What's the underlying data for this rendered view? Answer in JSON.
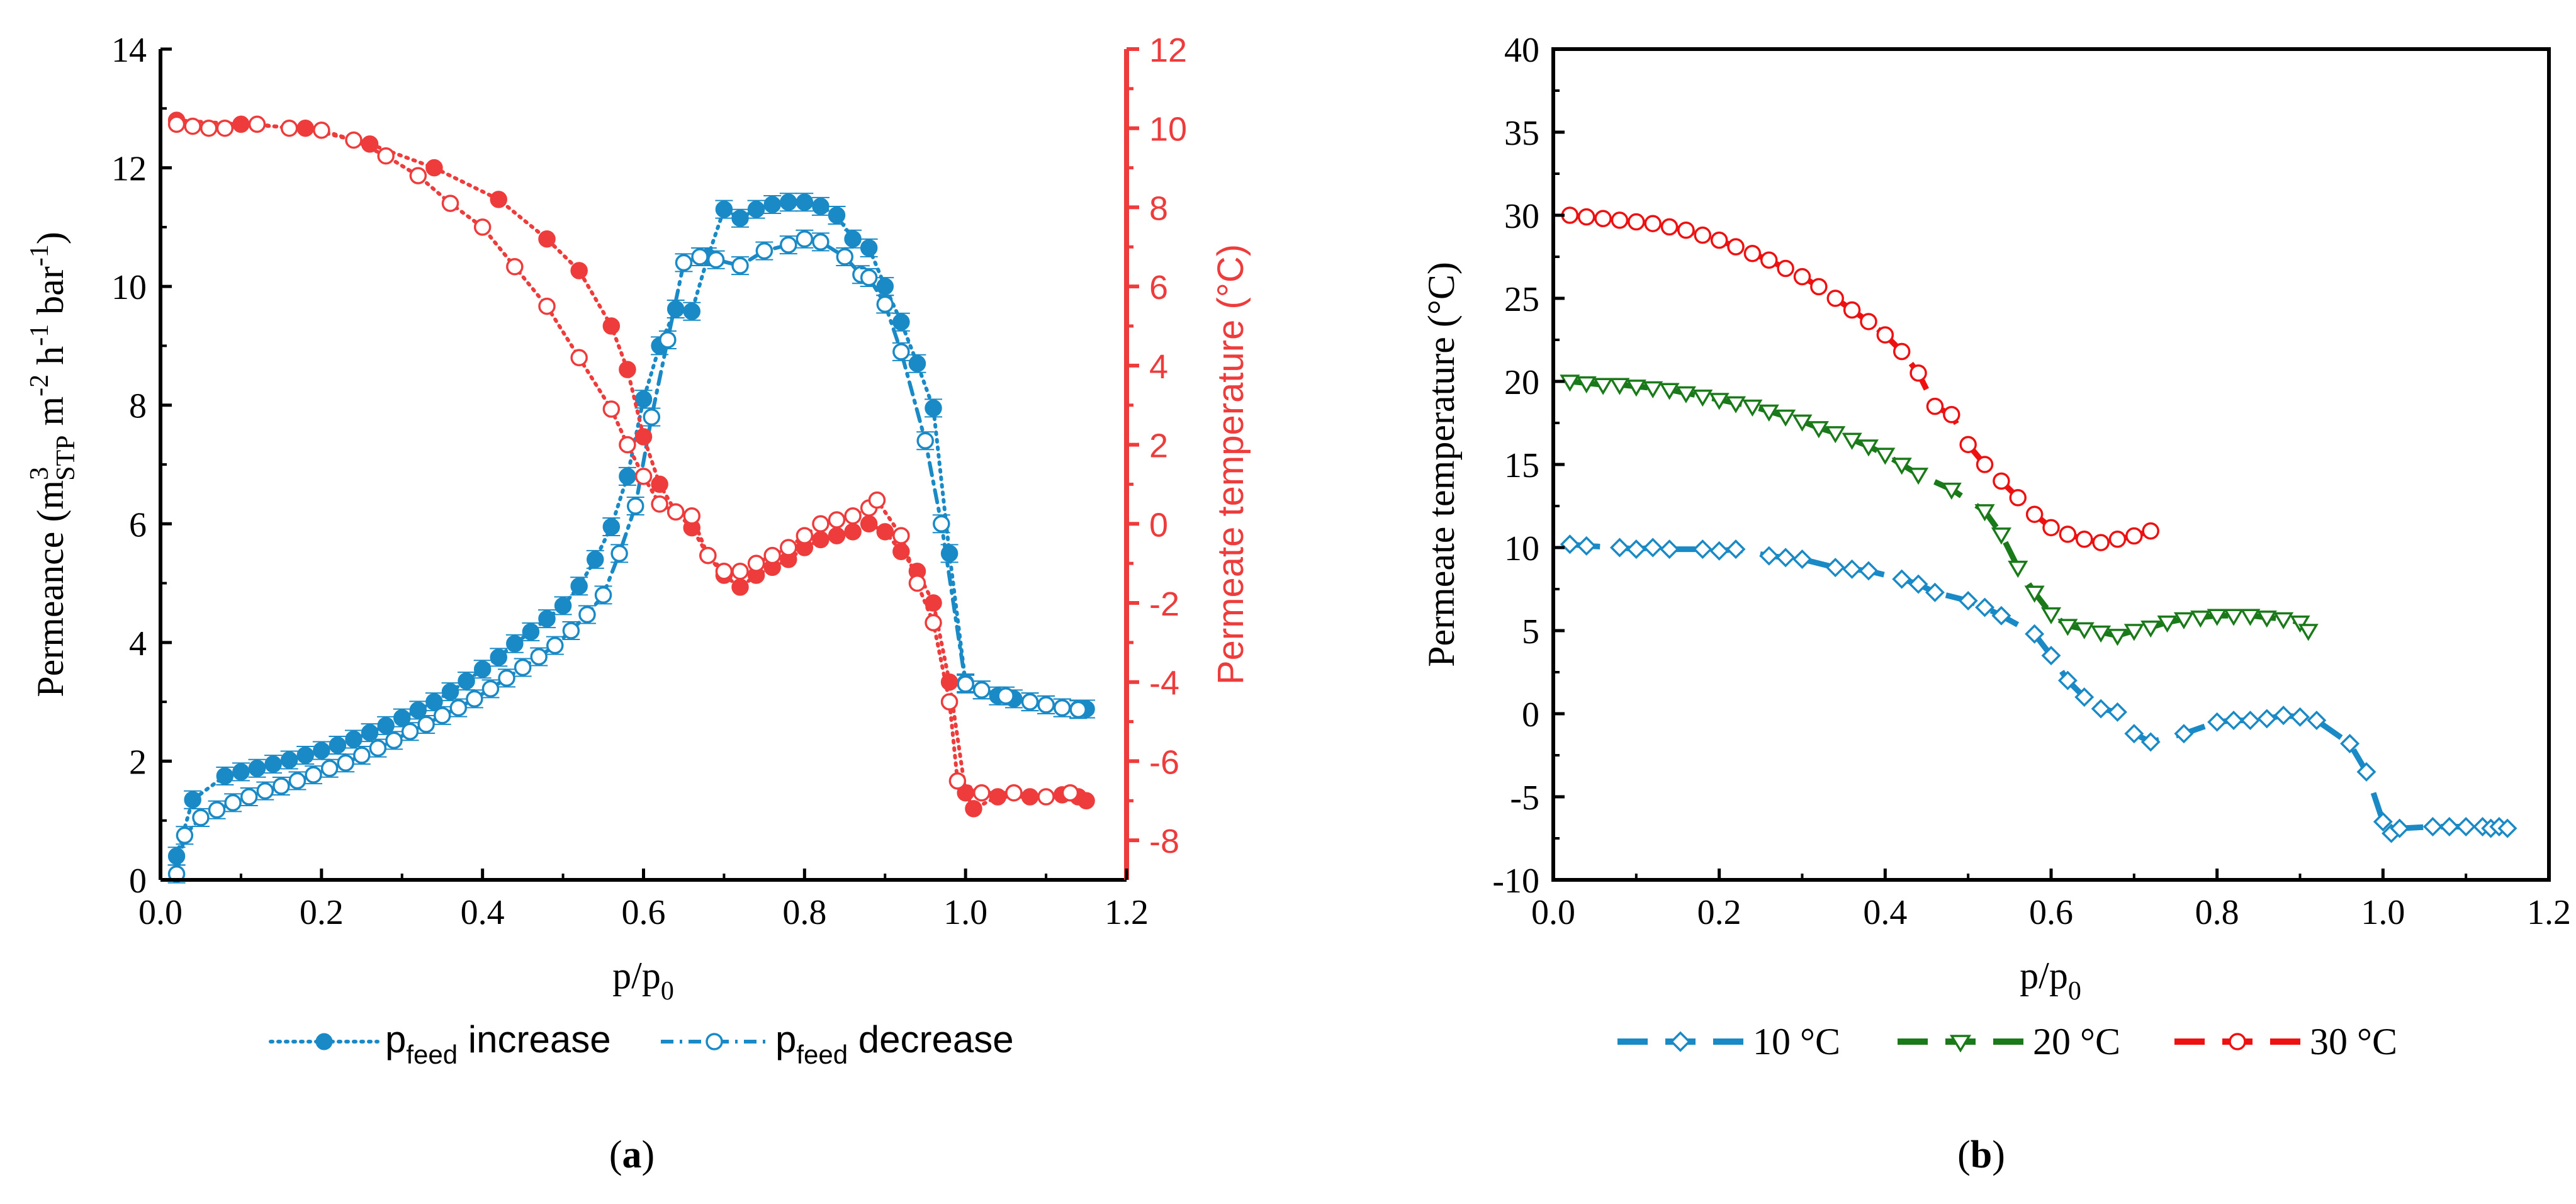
{
  "colors": {
    "blue": "#1a8ac6",
    "red": "#ee3b3b",
    "red_b": "#ee1111",
    "green": "#1a7a1a",
    "axis": "#000000"
  },
  "chart_data": [
    {
      "panel": "(a)",
      "panel_letter": "a",
      "type": "line",
      "xlabel": "p/p",
      "xlabel_sub": "0",
      "ylabel_left": {
        "pre": "Permeance (m",
        "sup1": "3",
        "sub1": "STP",
        "mid1": " m",
        "sup2": "-2",
        "mid2": " h",
        "sup3": "-1",
        "mid3": " bar",
        "sup4": "-1",
        "post": ")"
      },
      "ylabel_right": "Permeate temperature (°C)",
      "xlim": [
        0.0,
        1.2
      ],
      "ylim_left": [
        0,
        14
      ],
      "ylim_right": [
        -9,
        12
      ],
      "x_ticks": [
        "0.0",
        "0.2",
        "0.4",
        "0.6",
        "0.8",
        "1.0",
        "1.2"
      ],
      "y_left_ticks": [
        "0",
        "2",
        "4",
        "6",
        "8",
        "10",
        "12",
        "14"
      ],
      "y_right_ticks": [
        "-8",
        "-6",
        "-4",
        "-2",
        "0",
        "2",
        "4",
        "6",
        "8",
        "10",
        "12"
      ],
      "legend": [
        {
          "name_main": "p",
          "name_sub": "feed",
          "name_rest": " increase",
          "style": "filled"
        },
        {
          "name_main": "p",
          "name_sub": "feed",
          "name_rest": " decrease",
          "style": "open"
        }
      ],
      "series": [
        {
          "name": "Permeance, p_feed increase",
          "axis": "left",
          "color": "blue",
          "marker": "filled",
          "line": "dotted",
          "x": [
            0.02,
            0.04,
            0.08,
            0.1,
            0.12,
            0.14,
            0.16,
            0.18,
            0.2,
            0.22,
            0.24,
            0.26,
            0.28,
            0.3,
            0.32,
            0.34,
            0.36,
            0.38,
            0.4,
            0.42,
            0.44,
            0.46,
            0.48,
            0.5,
            0.52,
            0.54,
            0.56,
            0.58,
            0.6,
            0.62,
            0.64,
            0.66,
            0.68,
            0.7,
            0.72,
            0.74,
            0.76,
            0.78,
            0.8,
            0.82,
            0.84,
            0.86,
            0.88,
            0.9,
            0.92,
            0.94,
            0.96,
            0.98,
            1.0,
            1.02,
            1.04,
            1.06,
            1.08,
            1.1,
            1.12,
            1.14,
            1.15
          ],
          "y": [
            0.4,
            1.35,
            1.75,
            1.82,
            1.88,
            1.95,
            2.02,
            2.1,
            2.18,
            2.27,
            2.37,
            2.48,
            2.6,
            2.73,
            2.86,
            3.0,
            3.17,
            3.35,
            3.55,
            3.75,
            3.98,
            4.18,
            4.4,
            4.62,
            4.95,
            5.4,
            5.95,
            6.8,
            8.1,
            9.0,
            9.62,
            9.58,
            10.5,
            11.3,
            11.15,
            11.3,
            11.38,
            11.42,
            11.42,
            11.35,
            11.2,
            10.8,
            10.65,
            10.0,
            9.4,
            8.7,
            7.95,
            5.5,
            3.32,
            3.2,
            3.1,
            3.05,
            3.0,
            2.95,
            2.9,
            2.88,
            2.88
          ]
        },
        {
          "name": "Permeance, p_feed decrease",
          "axis": "left",
          "color": "blue",
          "marker": "open",
          "line": "dashdot",
          "x": [
            0.02,
            0.03,
            0.05,
            0.07,
            0.09,
            0.11,
            0.13,
            0.15,
            0.17,
            0.19,
            0.21,
            0.23,
            0.25,
            0.27,
            0.29,
            0.31,
            0.33,
            0.35,
            0.37,
            0.39,
            0.41,
            0.43,
            0.45,
            0.47,
            0.49,
            0.51,
            0.53,
            0.55,
            0.57,
            0.59,
            0.61,
            0.63,
            0.65,
            0.67,
            0.69,
            0.72,
            0.75,
            0.78,
            0.8,
            0.82,
            0.85,
            0.87,
            0.88,
            0.9,
            0.92,
            0.95,
            0.97,
            1.0,
            1.02,
            1.05,
            1.08,
            1.1,
            1.12,
            1.14
          ],
          "y": [
            0.1,
            0.75,
            1.05,
            1.18,
            1.3,
            1.4,
            1.5,
            1.58,
            1.67,
            1.77,
            1.88,
            1.97,
            2.1,
            2.22,
            2.35,
            2.5,
            2.62,
            2.77,
            2.9,
            3.05,
            3.22,
            3.4,
            3.58,
            3.76,
            3.95,
            4.2,
            4.47,
            4.8,
            5.5,
            6.3,
            7.8,
            9.1,
            10.4,
            10.5,
            10.45,
            10.35,
            10.6,
            10.7,
            10.8,
            10.75,
            10.5,
            10.2,
            10.15,
            9.7,
            8.9,
            7.4,
            6.0,
            3.3,
            3.2,
            3.1,
            3.0,
            2.95,
            2.9,
            2.87
          ]
        },
        {
          "name": "Permeate temperature, p_feed increase",
          "axis": "right",
          "color": "red",
          "marker": "filled",
          "line": "dotted",
          "x": [
            0.02,
            0.1,
            0.18,
            0.26,
            0.34,
            0.42,
            0.48,
            0.52,
            0.56,
            0.58,
            0.6,
            0.62,
            0.64,
            0.66,
            0.68,
            0.7,
            0.72,
            0.74,
            0.76,
            0.78,
            0.8,
            0.82,
            0.84,
            0.86,
            0.88,
            0.9,
            0.92,
            0.94,
            0.96,
            0.98,
            1.0,
            1.01,
            1.04,
            1.08,
            1.12,
            1.14,
            1.15
          ],
          "y": [
            10.2,
            10.1,
            10.0,
            9.6,
            9.0,
            8.2,
            7.2,
            6.4,
            5.0,
            3.9,
            2.2,
            1.0,
            0.3,
            -0.1,
            -0.8,
            -1.3,
            -1.6,
            -1.3,
            -1.1,
            -0.9,
            -0.6,
            -0.4,
            -0.3,
            -0.2,
            0.0,
            -0.2,
            -0.7,
            -1.2,
            -2.0,
            -4.0,
            -6.8,
            -7.2,
            -6.9,
            -6.9,
            -6.85,
            -6.9,
            -7.0
          ]
        },
        {
          "name": "Permeate temperature, p_feed decrease",
          "axis": "right",
          "color": "red",
          "marker": "open",
          "line": "dotted",
          "x": [
            0.02,
            0.04,
            0.06,
            0.08,
            0.12,
            0.16,
            0.2,
            0.24,
            0.28,
            0.32,
            0.36,
            0.4,
            0.44,
            0.48,
            0.52,
            0.56,
            0.58,
            0.6,
            0.62,
            0.64,
            0.66,
            0.68,
            0.7,
            0.72,
            0.74,
            0.76,
            0.78,
            0.8,
            0.82,
            0.84,
            0.86,
            0.88,
            0.89,
            0.92,
            0.94,
            0.96,
            0.98,
            0.99,
            1.02,
            1.06,
            1.1,
            1.13
          ],
          "y": [
            10.1,
            10.05,
            10.0,
            10.0,
            10.1,
            10.0,
            9.95,
            9.7,
            9.3,
            8.8,
            8.1,
            7.5,
            6.5,
            5.5,
            4.2,
            2.9,
            2.0,
            1.2,
            0.5,
            0.3,
            0.2,
            -0.8,
            -1.2,
            -1.2,
            -1.0,
            -0.8,
            -0.6,
            -0.3,
            0.0,
            0.1,
            0.2,
            0.4,
            0.6,
            -0.3,
            -1.5,
            -2.5,
            -4.5,
            -6.5,
            -6.8,
            -6.8,
            -6.9,
            -6.8
          ]
        }
      ]
    },
    {
      "panel": "(b)",
      "panel_letter": "b",
      "type": "line",
      "xlabel": "p/p",
      "xlabel_sub": "0",
      "ylabel": "Permeate temperature (°C)",
      "xlim": [
        0.0,
        1.2
      ],
      "ylim": [
        -10,
        40
      ],
      "x_ticks": [
        "0.0",
        "0.2",
        "0.4",
        "0.6",
        "0.8",
        "1.0",
        "1.2"
      ],
      "y_ticks": [
        "-10",
        "-5",
        "0",
        "5",
        "10",
        "15",
        "20",
        "25",
        "30",
        "35",
        "40"
      ],
      "legend": [
        {
          "name": "10 °C",
          "color": "blue",
          "marker": "diamond"
        },
        {
          "name": "20 °C",
          "color": "green",
          "marker": "triangle"
        },
        {
          "name": "30 °C",
          "color": "red_b",
          "marker": "circle"
        }
      ],
      "series": [
        {
          "name": "10 °C",
          "color": "blue",
          "marker": "diamond",
          "line": "dashed",
          "x": [
            0.02,
            0.04,
            0.08,
            0.1,
            0.12,
            0.14,
            0.18,
            0.2,
            0.22,
            0.26,
            0.28,
            0.3,
            0.34,
            0.36,
            0.38,
            0.42,
            0.44,
            0.46,
            0.5,
            0.52,
            0.54,
            0.58,
            0.6,
            0.62,
            0.64,
            0.66,
            0.68,
            0.7,
            0.72,
            0.76,
            0.8,
            0.82,
            0.84,
            0.86,
            0.88,
            0.9,
            0.92,
            0.96,
            0.98,
            1.0,
            1.01,
            1.02,
            1.06,
            1.08,
            1.1,
            1.12,
            1.13,
            1.14,
            1.15
          ],
          "y": [
            10.2,
            10.1,
            10.0,
            9.9,
            10.0,
            9.9,
            9.9,
            9.8,
            9.9,
            9.5,
            9.4,
            9.3,
            8.8,
            8.7,
            8.6,
            8.1,
            7.8,
            7.3,
            6.8,
            6.4,
            5.9,
            4.8,
            3.5,
            2.0,
            1.0,
            0.3,
            0.1,
            -1.2,
            -1.7,
            -1.2,
            -0.5,
            -0.4,
            -0.4,
            -0.3,
            -0.1,
            -0.2,
            -0.4,
            -1.8,
            -3.5,
            -6.5,
            -7.2,
            -6.9,
            -6.8,
            -6.8,
            -6.8,
            -6.8,
            -6.9,
            -6.8,
            -6.9
          ]
        },
        {
          "name": "20 °C",
          "color": "green",
          "marker": "triangle",
          "line": "dashed",
          "x": [
            0.02,
            0.04,
            0.06,
            0.08,
            0.1,
            0.12,
            0.14,
            0.16,
            0.18,
            0.2,
            0.22,
            0.24,
            0.26,
            0.28,
            0.3,
            0.32,
            0.34,
            0.36,
            0.38,
            0.4,
            0.42,
            0.44,
            0.48,
            0.52,
            0.54,
            0.56,
            0.58,
            0.6,
            0.62,
            0.64,
            0.66,
            0.68,
            0.7,
            0.72,
            0.74,
            0.76,
            0.78,
            0.8,
            0.82,
            0.84,
            0.86,
            0.88,
            0.9,
            0.91
          ],
          "y": [
            20.0,
            19.9,
            19.8,
            19.8,
            19.7,
            19.6,
            19.5,
            19.3,
            19.1,
            18.9,
            18.7,
            18.5,
            18.2,
            17.9,
            17.6,
            17.2,
            16.9,
            16.5,
            16.1,
            15.6,
            15.0,
            14.4,
            13.5,
            12.2,
            10.8,
            8.8,
            7.3,
            6.0,
            5.3,
            5.1,
            4.9,
            4.7,
            5.0,
            5.2,
            5.5,
            5.7,
            5.8,
            5.9,
            5.9,
            5.9,
            5.8,
            5.7,
            5.5,
            5.0
          ]
        },
        {
          "name": "30 °C",
          "color": "red_b",
          "marker": "circle",
          "line": "dashed",
          "x": [
            0.02,
            0.04,
            0.06,
            0.08,
            0.1,
            0.12,
            0.14,
            0.16,
            0.18,
            0.2,
            0.22,
            0.24,
            0.26,
            0.28,
            0.3,
            0.32,
            0.34,
            0.36,
            0.38,
            0.4,
            0.42,
            0.44,
            0.46,
            0.48,
            0.5,
            0.52,
            0.54,
            0.56,
            0.58,
            0.6,
            0.62,
            0.64,
            0.66,
            0.68,
            0.7,
            0.72
          ],
          "y": [
            30.0,
            29.9,
            29.8,
            29.7,
            29.6,
            29.5,
            29.3,
            29.1,
            28.8,
            28.5,
            28.1,
            27.7,
            27.3,
            26.8,
            26.3,
            25.7,
            25.0,
            24.3,
            23.6,
            22.8,
            21.8,
            20.5,
            18.5,
            18.0,
            16.2,
            15.0,
            14.0,
            13.0,
            12.0,
            11.2,
            10.8,
            10.5,
            10.3,
            10.5,
            10.7,
            11.0
          ]
        }
      ]
    }
  ]
}
